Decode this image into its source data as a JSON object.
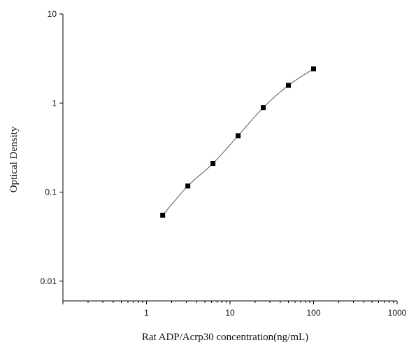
{
  "chart_data": {
    "type": "scatter",
    "xlabel": "Rat ADP/Acrp30 concentration(ng/mL)",
    "ylabel": "Optical Density",
    "x_scale": "log",
    "y_scale": "log",
    "xlim": [
      0.1,
      1000
    ],
    "ylim": [
      0.006,
      10
    ],
    "x_ticks": [
      "1",
      "10",
      "100",
      "1000"
    ],
    "y_ticks": [
      "0.01",
      "0.1",
      "1",
      "10"
    ],
    "grid": false,
    "series": [
      {
        "x": [
          1.5625,
          3.125,
          6.25,
          12.5,
          25,
          50,
          100
        ],
        "y": [
          0.055,
          0.117,
          0.21,
          0.43,
          0.89,
          1.58,
          2.42
        ],
        "marker": "square",
        "fitted_curve": true
      }
    ],
    "colors": {
      "marks": "#000000",
      "curve": "#555555",
      "axis": "#000000"
    }
  }
}
